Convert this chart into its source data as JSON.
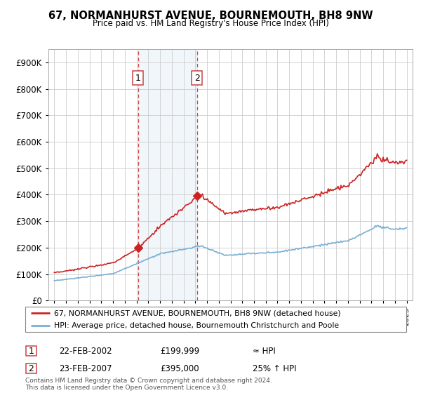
{
  "title": "67, NORMANHURST AVENUE, BOURNEMOUTH, BH8 9NW",
  "subtitle": "Price paid vs. HM Land Registry's House Price Index (HPI)",
  "legend_line1": "67, NORMANHURST AVENUE, BOURNEMOUTH, BH8 9NW (detached house)",
  "legend_line2": "HPI: Average price, detached house, Bournemouth Christchurch and Poole",
  "purchase1_date": "22-FEB-2002",
  "purchase1_price": "£199,999",
  "purchase1_hpi": "≈ HPI",
  "purchase2_date": "23-FEB-2007",
  "purchase2_price": "£395,000",
  "purchase2_hpi": "25% ↑ HPI",
  "footnote": "Contains HM Land Registry data © Crown copyright and database right 2024.\nThis data is licensed under the Open Government Licence v3.0.",
  "purchase1_year": 2002.14,
  "purchase2_year": 2007.14,
  "purchase1_value": 199999,
  "purchase2_value": 395000,
  "hpi_color": "#7aafd4",
  "price_color": "#cc2222",
  "highlight_color": "#ddeeff",
  "marker_color": "#cc2222",
  "vline_color": "#cc4444",
  "ylim_max": 950000,
  "ylim_min": 0,
  "xlim_min": 1994.5,
  "xlim_max": 2025.5
}
